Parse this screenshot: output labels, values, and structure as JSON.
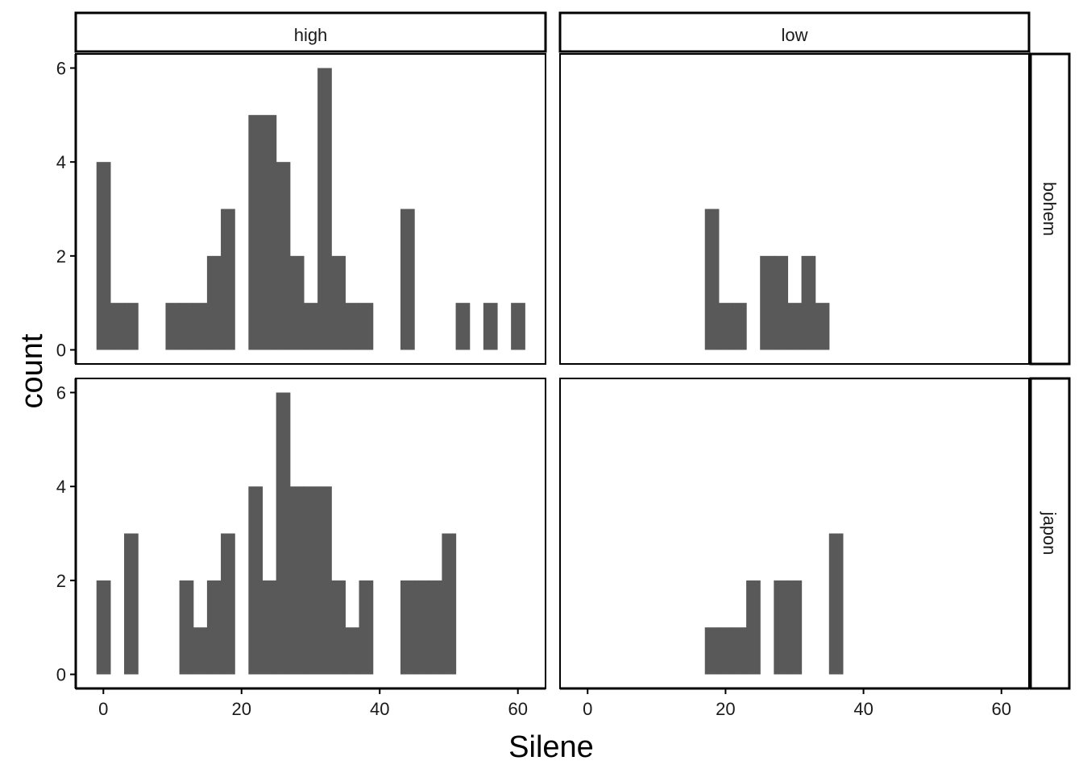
{
  "chart_data": {
    "type": "bar",
    "xlabel": "Silene",
    "ylabel": "count",
    "col_facets": [
      "high",
      "low"
    ],
    "row_facets": [
      "bohem",
      "japon"
    ],
    "xlim": [
      -4,
      64
    ],
    "ylim": [
      -0.3,
      6.3
    ],
    "x_ticks": [
      0,
      20,
      40,
      60
    ],
    "y_ticks": [
      0,
      2,
      4,
      6
    ],
    "bin_width": 2,
    "bar_color": "#595959",
    "panels": [
      {
        "row": "bohem",
        "col": "high",
        "bins": [
          {
            "x": 0,
            "count": 4
          },
          {
            "x": 2,
            "count": 1
          },
          {
            "x": 4,
            "count": 1
          },
          {
            "x": 10,
            "count": 1
          },
          {
            "x": 12,
            "count": 1
          },
          {
            "x": 14,
            "count": 1
          },
          {
            "x": 16,
            "count": 2
          },
          {
            "x": 18,
            "count": 3
          },
          {
            "x": 22,
            "count": 5
          },
          {
            "x": 24,
            "count": 5
          },
          {
            "x": 26,
            "count": 4
          },
          {
            "x": 28,
            "count": 2
          },
          {
            "x": 30,
            "count": 1
          },
          {
            "x": 32,
            "count": 6
          },
          {
            "x": 34,
            "count": 2
          },
          {
            "x": 36,
            "count": 1
          },
          {
            "x": 38,
            "count": 1
          },
          {
            "x": 44,
            "count": 3
          },
          {
            "x": 52,
            "count": 1
          },
          {
            "x": 56,
            "count": 1
          },
          {
            "x": 60,
            "count": 1
          }
        ]
      },
      {
        "row": "bohem",
        "col": "low",
        "bins": [
          {
            "x": 18,
            "count": 3
          },
          {
            "x": 20,
            "count": 1
          },
          {
            "x": 22,
            "count": 1
          },
          {
            "x": 26,
            "count": 2
          },
          {
            "x": 28,
            "count": 2
          },
          {
            "x": 30,
            "count": 1
          },
          {
            "x": 32,
            "count": 2
          },
          {
            "x": 34,
            "count": 1
          }
        ]
      },
      {
        "row": "japon",
        "col": "high",
        "bins": [
          {
            "x": 0,
            "count": 2
          },
          {
            "x": 4,
            "count": 3
          },
          {
            "x": 12,
            "count": 2
          },
          {
            "x": 14,
            "count": 1
          },
          {
            "x": 16,
            "count": 2
          },
          {
            "x": 18,
            "count": 3
          },
          {
            "x": 22,
            "count": 4
          },
          {
            "x": 24,
            "count": 2
          },
          {
            "x": 26,
            "count": 6
          },
          {
            "x": 28,
            "count": 4
          },
          {
            "x": 30,
            "count": 4
          },
          {
            "x": 32,
            "count": 4
          },
          {
            "x": 34,
            "count": 2
          },
          {
            "x": 36,
            "count": 1
          },
          {
            "x": 38,
            "count": 2
          },
          {
            "x": 44,
            "count": 2
          },
          {
            "x": 46,
            "count": 2
          },
          {
            "x": 48,
            "count": 2
          },
          {
            "x": 50,
            "count": 3
          }
        ]
      },
      {
        "row": "japon",
        "col": "low",
        "bins": [
          {
            "x": 18,
            "count": 1
          },
          {
            "x": 20,
            "count": 1
          },
          {
            "x": 22,
            "count": 1
          },
          {
            "x": 24,
            "count": 2
          },
          {
            "x": 28,
            "count": 2
          },
          {
            "x": 30,
            "count": 2
          },
          {
            "x": 36,
            "count": 3
          }
        ]
      }
    ]
  }
}
